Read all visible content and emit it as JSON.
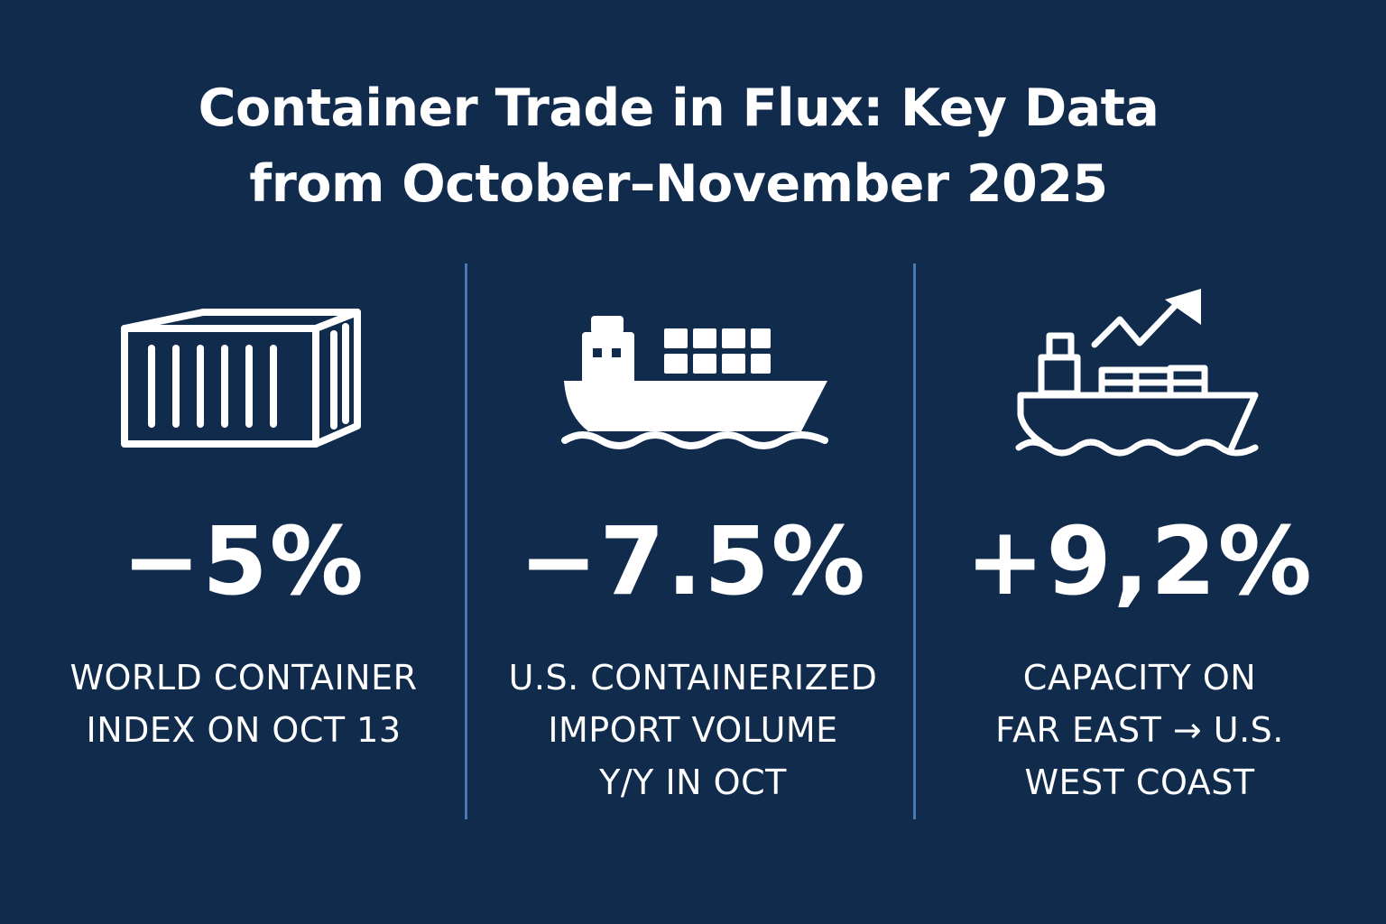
{
  "title": {
    "line1": "Container Trade in Flux: Key Data",
    "line2": "from October–November 2025"
  },
  "colors": {
    "background": "#112b4d",
    "text": "#ffffff",
    "divider": "#4a78b0"
  },
  "stats": [
    {
      "icon": "shipping-container-icon",
      "value": "−5%",
      "label_lines": [
        "WORLD CONTAINER",
        "INDEX ON OCT 13"
      ]
    },
    {
      "icon": "container-ship-icon",
      "value": "−7.5%",
      "label_lines": [
        "U.S. CONTAINERIZED",
        "IMPORT VOLUME",
        "Y/Y IN OCT"
      ]
    },
    {
      "icon": "ship-trend-up-icon",
      "value": "+9,2%",
      "label_lines": [
        "CAPACITY ON",
        "FAR EAST → U.S.",
        "WEST COAST"
      ]
    }
  ]
}
